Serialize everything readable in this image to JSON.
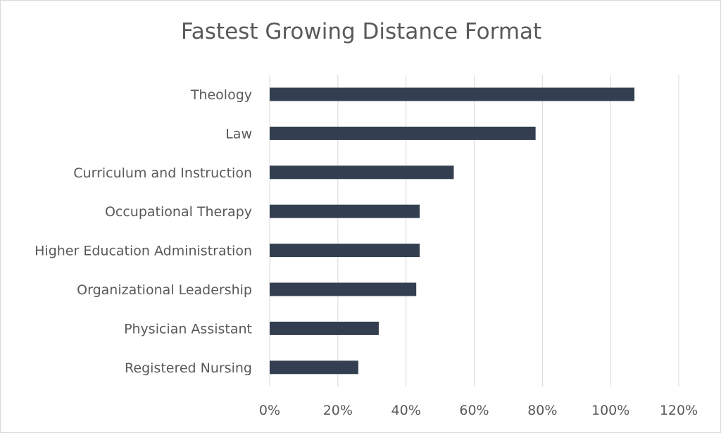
{
  "chart_data": {
    "type": "bar",
    "orientation": "horizontal",
    "title": "Fastest Growing Distance Format",
    "categories": [
      "Theology",
      "Law",
      "Curriculum and Instruction",
      "Occupational Therapy",
      "Higher Education Administration",
      "Organizational Leadership",
      "Physician Assistant",
      "Registered Nursing"
    ],
    "values": [
      107,
      78,
      54,
      44,
      44,
      43,
      32,
      26
    ],
    "value_unit": "%",
    "xlim": [
      0,
      120
    ],
    "x_ticks": [
      "0%",
      "20%",
      "40%",
      "60%",
      "80%",
      "100%",
      "120%"
    ],
    "grid": "vertical",
    "legend": "none",
    "colors": {
      "bar": "#333f50",
      "grid": "#d9d9d9",
      "text": "#595959"
    }
  }
}
